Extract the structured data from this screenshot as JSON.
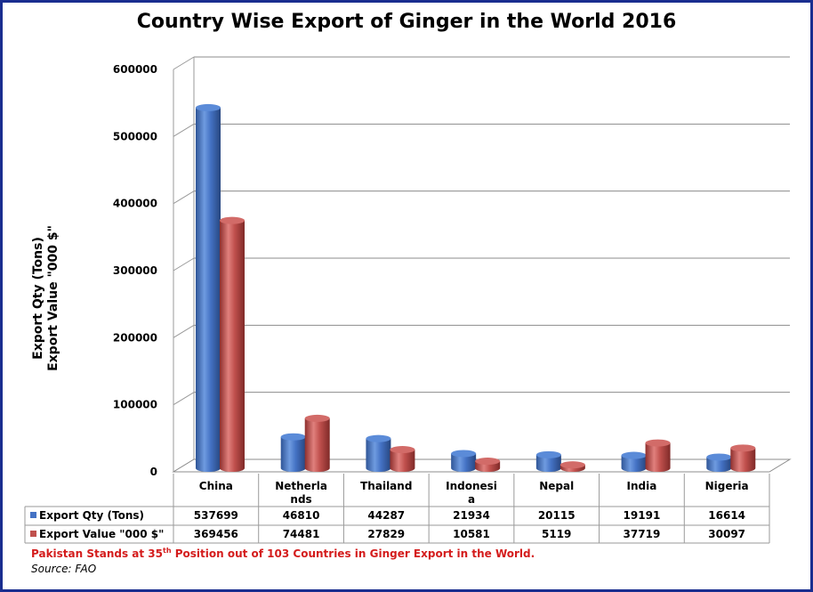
{
  "title": "Country Wise Export of Ginger in the World 2016",
  "ylabel_line1": "Export Qty (Tons)",
  "ylabel_line2": "Export Value \"000 $\"",
  "note": {
    "before": "Pakistan Stands at 35",
    "sup": "th",
    "after": " Position out of 103 Countries in Ginger Export in the World."
  },
  "source": "Source: FAO",
  "colors": {
    "qty": "#4472c4",
    "value": "#c0504d",
    "frame": "#1a2e8f",
    "note": "#d41c1c"
  },
  "chart_data": {
    "type": "bar",
    "title": "Country Wise Export of Ginger in the World 2016",
    "ylabel": "Export Qty (Tons) Export Value \"000 $\"",
    "ylim": [
      0,
      600000
    ],
    "yticks": [
      "0",
      "100000",
      "200000",
      "300000",
      "400000",
      "500000",
      "600000"
    ],
    "grid": true,
    "legend": "data table",
    "categories": [
      "China",
      "Netherlands",
      "Thailand",
      "Indonesia",
      "Nepal",
      "India",
      "Nigeria"
    ],
    "category_label_lines": [
      [
        "China"
      ],
      [
        "Netherla",
        "nds"
      ],
      [
        "Thailand"
      ],
      [
        "Indonesi",
        "a"
      ],
      [
        "Nepal"
      ],
      [
        "India"
      ],
      [
        "Nigeria"
      ]
    ],
    "series": [
      {
        "name": "Export Qty (Tons)",
        "values": [
          537699,
          46810,
          44287,
          21934,
          20115,
          19191,
          16614
        ]
      },
      {
        "name": "Export Value \"000 $\"",
        "values": [
          369456,
          74481,
          27829,
          10581,
          5119,
          37719,
          30097
        ]
      }
    ]
  }
}
